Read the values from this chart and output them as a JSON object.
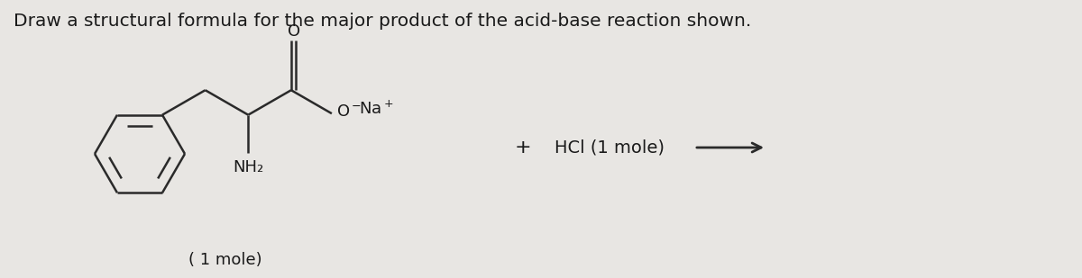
{
  "title": "Draw a structural formula for the major product of the acid-base reaction shown.",
  "title_fontsize": 14.5,
  "background_color": "#e8e6e3",
  "line_color": "#2a2a2a",
  "line_width": 1.8,
  "text_color": "#1a1a1a",
  "hcl_text": "HCl (1 mole)",
  "one_mole_text": "( 1 mole)",
  "o_double_text": "O",
  "nh2_text": "NH₂"
}
